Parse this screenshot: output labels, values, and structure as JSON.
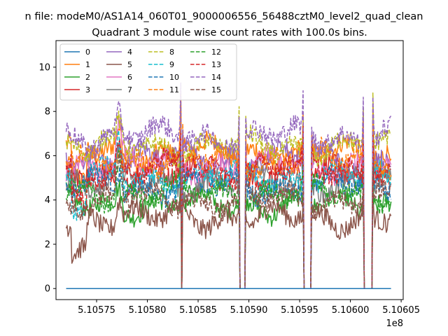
{
  "figure": {
    "suptitle": "n file: modeM0/AS1A14_060T01_9000006556_56488cztM0_level2_quad_clean"
  },
  "chart_data": {
    "type": "line",
    "title": "Quadrant 3 module wise count rates with 100.0s bins.",
    "xlabel": "",
    "ylabel": "",
    "x_offset_label": "1e8",
    "x_scale": 100000000,
    "xlim": [
      5.10571,
      5.106052
    ],
    "ylim": [
      -0.5,
      11.2
    ],
    "x_range": [
      5.10572,
      5.10604
    ],
    "x_ticks": [
      5.10575,
      5.1058,
      5.10585,
      5.1059,
      5.10595,
      5.106,
      5.10605
    ],
    "x_tick_labels": [
      "5.10575",
      "5.10580",
      "5.10585",
      "5.10590",
      "5.10595",
      "5.10600",
      "5.10605"
    ],
    "y_ticks": [
      0,
      2,
      4,
      6,
      8,
      10
    ],
    "y_tick_labels": [
      "0",
      "2",
      "4",
      "6",
      "8",
      "10"
    ],
    "grid": false,
    "legend_position": "upper-left",
    "legend_columns": 4,
    "gaps": [
      [
        5.105833,
        5.105834
      ],
      [
        5.105891,
        5.105896
      ],
      [
        5.105954,
        5.105961
      ],
      [
        5.106013,
        5.106022
      ]
    ],
    "series": [
      {
        "name": "0",
        "color": "#1f77b4",
        "style": "solid",
        "level": 0.0
      },
      {
        "name": "1",
        "color": "#ff7f0e",
        "style": "solid",
        "level": 6.1
      },
      {
        "name": "2",
        "color": "#2ca02c",
        "style": "solid",
        "level": 3.8
      },
      {
        "name": "3",
        "color": "#d62728",
        "style": "solid",
        "level": 5.2
      },
      {
        "name": "4",
        "color": "#9467bd",
        "style": "solid",
        "level": 5.9
      },
      {
        "name": "5",
        "color": "#8c564b",
        "style": "solid",
        "level": 3.2
      },
      {
        "name": "6",
        "color": "#e377c2",
        "style": "solid",
        "level": 5.6
      },
      {
        "name": "7",
        "color": "#7f7f7f",
        "style": "solid",
        "level": 4.8
      },
      {
        "name": "8",
        "color": "#bcbd22",
        "style": "dashed",
        "level": 6.4
      },
      {
        "name": "9",
        "color": "#17becf",
        "style": "dashed",
        "level": 5.0
      },
      {
        "name": "10",
        "color": "#1f77b4",
        "style": "dashed",
        "level": 4.6
      },
      {
        "name": "11",
        "color": "#ff7f0e",
        "style": "dashed",
        "level": 5.8
      },
      {
        "name": "12",
        "color": "#2ca02c",
        "style": "dashed",
        "level": 4.3
      },
      {
        "name": "13",
        "color": "#d62728",
        "style": "dashed",
        "level": 5.4
      },
      {
        "name": "14",
        "color": "#9467bd",
        "style": "dashed",
        "level": 6.9
      },
      {
        "name": "15",
        "color": "#8c564b",
        "style": "dashed",
        "level": 4.0
      }
    ]
  }
}
